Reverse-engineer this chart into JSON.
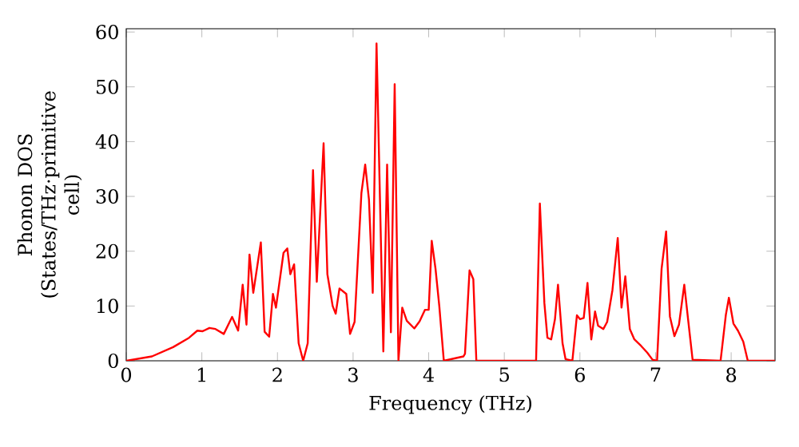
{
  "chart_data": {
    "type": "line",
    "xlabel": "Frequency (THz)",
    "ylabel": "Phonon DOS (States/THz·primitive cell)",
    "x": [
      0,
      0.34,
      0.62,
      0.83,
      0.94,
      1.01,
      1.1,
      1.18,
      1.29,
      1.4,
      1.48,
      1.54,
      1.59,
      1.63,
      1.68,
      1.78,
      1.83,
      1.89,
      1.94,
      1.98,
      2.08,
      2.13,
      2.17,
      2.22,
      2.28,
      2.34,
      2.4,
      2.47,
      2.52,
      2.61,
      2.66,
      2.73,
      2.77,
      2.82,
      2.91,
      2.96,
      3.02,
      3.11,
      3.16,
      3.21,
      3.26,
      3.31,
      3.4,
      3.45,
      3.5,
      3.55,
      3.6,
      3.65,
      3.71,
      3.81,
      3.88,
      3.95,
      4.0,
      4.04,
      4.09,
      4.14,
      4.2,
      4.46,
      4.48,
      4.54,
      4.59,
      4.63,
      5.42,
      5.47,
      5.53,
      5.57,
      5.62,
      5.67,
      5.71,
      5.77,
      5.81,
      5.9,
      5.96,
      6.0,
      6.05,
      6.1,
      6.15,
      6.2,
      6.24,
      6.31,
      6.36,
      6.43,
      6.5,
      6.55,
      6.6,
      6.66,
      6.72,
      6.81,
      6.89,
      6.96,
      7.02,
      7.08,
      7.14,
      7.19,
      7.25,
      7.31,
      7.38,
      7.43,
      7.49,
      7.86,
      7.93,
      7.97,
      8.03,
      8.09,
      8.16,
      8.22,
      8.58
    ],
    "series": [
      {
        "color": "#ff0000",
        "values": [
          0,
          0.8,
          2.5,
          4.2,
          5.5,
          5.4,
          6.0,
          5.8,
          4.9,
          8.0,
          5.5,
          13.9,
          6.6,
          19.4,
          12.4,
          21.6,
          5.3,
          4.4,
          12.2,
          9.7,
          19.7,
          20.5,
          15.8,
          17.6,
          3.2,
          0,
          3.2,
          34.8,
          14.4,
          39.7,
          15.8,
          10.0,
          8.6,
          13.2,
          12.2,
          4.9,
          7.1,
          30.6,
          35.8,
          29.4,
          12.4,
          57.9,
          1.7,
          35.8,
          5.2,
          50.5,
          0,
          9.7,
          7.3,
          5.9,
          7.2,
          9.3,
          9.3,
          21.9,
          16.8,
          10.0,
          0,
          0.8,
          1.3,
          16.5,
          14.9,
          0,
          0,
          28.7,
          10.5,
          4.2,
          3.9,
          7.6,
          13.9,
          3.2,
          0.3,
          0,
          8.3,
          7.6,
          7.8,
          14.2,
          3.9,
          9.0,
          6.4,
          5.8,
          7.1,
          12.9,
          22.4,
          9.7,
          15.4,
          5.8,
          3.9,
          2.7,
          1.5,
          0.2,
          0,
          16.8,
          23.6,
          8.1,
          4.5,
          6.6,
          13.9,
          7.6,
          0.2,
          0,
          8.4,
          11.5,
          6.8,
          5.5,
          3.5,
          0,
          0
        ]
      }
    ],
    "xlim": [
      0,
      8.58
    ],
    "ylim": [
      0,
      60.6
    ],
    "xticks": [
      0,
      1,
      2,
      3,
      4,
      5,
      6,
      7,
      8
    ],
    "yticks": [
      0,
      10,
      20,
      30,
      40,
      50,
      60
    ]
  }
}
